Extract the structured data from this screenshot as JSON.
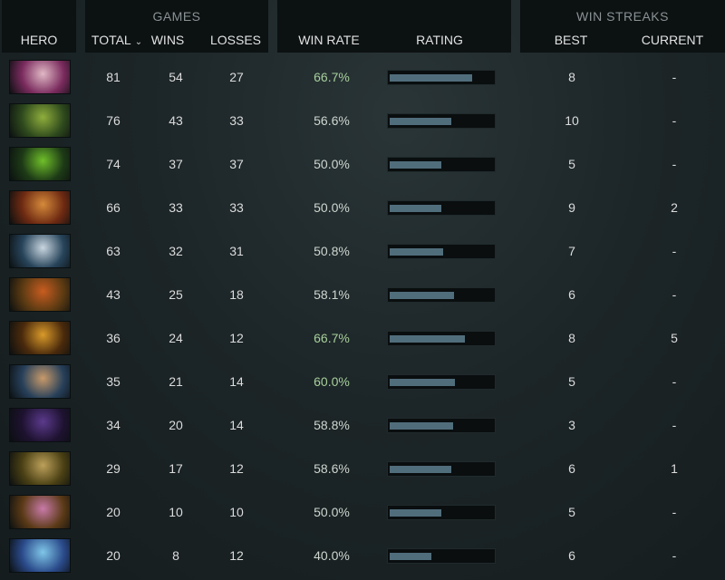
{
  "header": {
    "hero": "HERO",
    "games_group": "GAMES",
    "total": "TOTAL",
    "wins": "WINS",
    "losses": "LOSSES",
    "win_rate": "WIN RATE",
    "rating": "RATING",
    "streaks_group": "WIN STREAKS",
    "best": "BEST",
    "current": "CURRENT",
    "sort_icon": "chevron-down-icon"
  },
  "rows": [
    {
      "portrait_colors": [
        "#7a2b5e",
        "#e0b8c4"
      ],
      "total": "81",
      "wins": "54",
      "losses": "27",
      "win_rate": "66.7%",
      "good": true,
      "rating": 0.8,
      "best": "8",
      "current": "-"
    },
    {
      "portrait_colors": [
        "#2f4a1d",
        "#8fae3c"
      ],
      "total": "76",
      "wins": "43",
      "losses": "33",
      "win_rate": "56.6%",
      "good": false,
      "rating": 0.6,
      "best": "10",
      "current": "-"
    },
    {
      "portrait_colors": [
        "#1d3a16",
        "#6fbf2a"
      ],
      "total": "74",
      "wins": "37",
      "losses": "37",
      "win_rate": "50.0%",
      "good": false,
      "rating": 0.5,
      "best": "5",
      "current": "-"
    },
    {
      "portrait_colors": [
        "#6e2a12",
        "#d58a3a"
      ],
      "total": "66",
      "wins": "33",
      "losses": "33",
      "win_rate": "50.0%",
      "good": false,
      "rating": 0.5,
      "best": "9",
      "current": "2"
    },
    {
      "portrait_colors": [
        "#27445a",
        "#c9d6e0"
      ],
      "total": "63",
      "wins": "32",
      "losses": "31",
      "win_rate": "50.8%",
      "good": false,
      "rating": 0.52,
      "best": "7",
      "current": "-"
    },
    {
      "portrait_colors": [
        "#5a3a12",
        "#c85c20"
      ],
      "total": "43",
      "wins": "25",
      "losses": "18",
      "win_rate": "58.1%",
      "good": false,
      "rating": 0.62,
      "best": "6",
      "current": "-"
    },
    {
      "portrait_colors": [
        "#4a2a0c",
        "#d99a2a"
      ],
      "total": "36",
      "wins": "24",
      "losses": "12",
      "win_rate": "66.7%",
      "good": true,
      "rating": 0.73,
      "best": "8",
      "current": "5"
    },
    {
      "portrait_colors": [
        "#27405a",
        "#c89a6a"
      ],
      "total": "35",
      "wins": "21",
      "losses": "14",
      "win_rate": "60.0%",
      "good": true,
      "rating": 0.63,
      "best": "5",
      "current": "-"
    },
    {
      "portrait_colors": [
        "#1e1230",
        "#5b3a8c"
      ],
      "total": "34",
      "wins": "20",
      "losses": "14",
      "win_rate": "58.8%",
      "good": false,
      "rating": 0.61,
      "best": "3",
      "current": "-"
    },
    {
      "portrait_colors": [
        "#4a4014",
        "#bca05a"
      ],
      "total": "29",
      "wins": "17",
      "losses": "12",
      "win_rate": "58.6%",
      "good": false,
      "rating": 0.6,
      "best": "6",
      "current": "1"
    },
    {
      "portrait_colors": [
        "#5a3a16",
        "#c87aa8"
      ],
      "total": "20",
      "wins": "10",
      "losses": "10",
      "win_rate": "50.0%",
      "good": false,
      "rating": 0.5,
      "best": "5",
      "current": "-"
    },
    {
      "portrait_colors": [
        "#2a4a8a",
        "#7fc6e8"
      ],
      "total": "20",
      "wins": "8",
      "losses": "12",
      "win_rate": "40.0%",
      "good": false,
      "rating": 0.4,
      "best": "6",
      "current": "-"
    }
  ]
}
